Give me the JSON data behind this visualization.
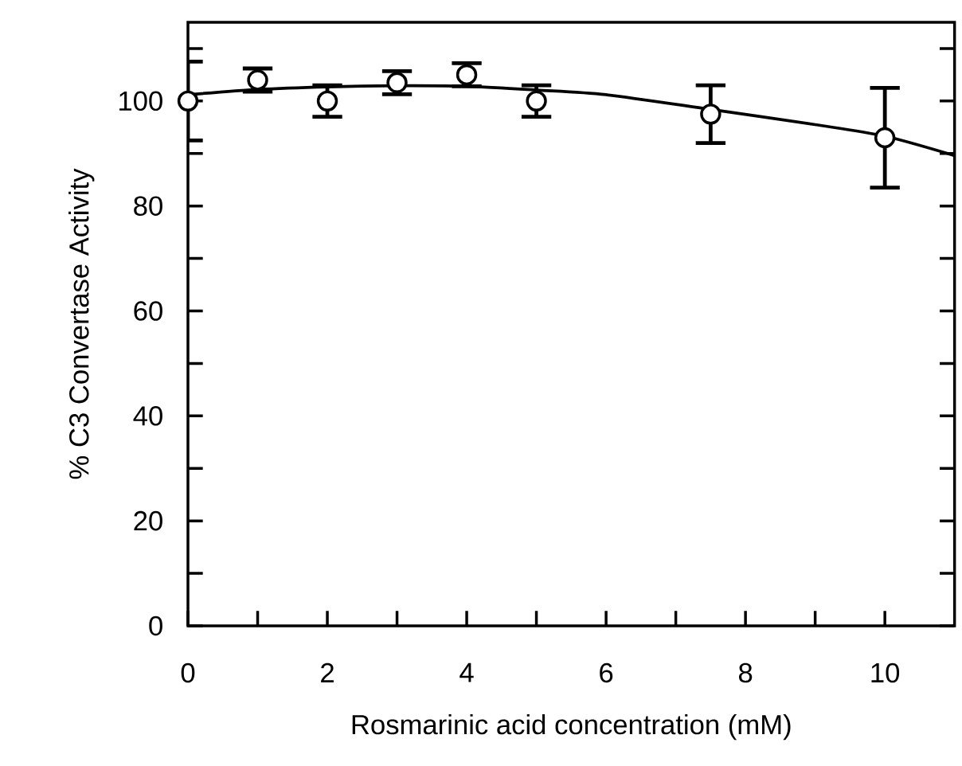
{
  "chart_data": {
    "type": "scatter",
    "xlabel": "Rosmarinic acid concentration (mM)",
    "ylabel": "% C3 Convertase Activity",
    "xlim": [
      0,
      11
    ],
    "ylim": [
      0,
      115
    ],
    "xticks": [
      0,
      {
        "value": 1,
        "label": null
      },
      2,
      {
        "value": 3,
        "label": null
      },
      4,
      {
        "value": 5,
        "label": null
      },
      6,
      {
        "value": 7,
        "label": null
      },
      8,
      {
        "value": 9,
        "label": null
      },
      10
    ],
    "yticks": [
      0,
      {
        "value": 10,
        "label": null
      },
      20,
      {
        "value": 30,
        "label": null
      },
      40,
      {
        "value": 50,
        "label": null
      },
      60,
      {
        "value": 70,
        "label": null
      },
      80,
      {
        "value": 90,
        "label": null
      },
      100,
      {
        "value": 110,
        "label": null
      }
    ],
    "marker": "circle",
    "series": [
      {
        "type": "line",
        "color": "#000000",
        "marker": "none",
        "line_style": "solid",
        "x": [
          0,
          1,
          2,
          3,
          4,
          5,
          6,
          7.5,
          9,
          10,
          11
        ],
        "values": [
          101.2,
          102.2,
          102.7,
          102.9,
          102.8,
          102.1,
          101.2,
          98.4,
          95.5,
          93.3,
          89.6
        ]
      },
      {
        "color": "#000000",
        "x": [
          0,
          1,
          2,
          3,
          4,
          5,
          7.5,
          10
        ],
        "values": [
          100,
          104,
          100,
          103.5,
          105,
          100,
          97.5,
          93
        ],
        "errors": [
          7.5,
          2.2,
          3,
          2.2,
          2.2,
          3,
          5.5,
          9.5
        ]
      }
    ]
  }
}
